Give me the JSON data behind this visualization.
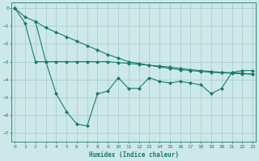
{
  "line1_x": [
    0,
    1,
    2,
    3,
    4,
    5,
    6,
    7,
    8,
    9,
    10,
    11,
    12,
    13,
    14,
    15,
    16,
    17,
    18,
    19,
    20,
    21,
    22,
    23
  ],
  "line1_y": [
    0.0,
    -0.5,
    -0.75,
    -1.1,
    -1.35,
    -1.6,
    -1.85,
    -2.1,
    -2.35,
    -2.6,
    -2.8,
    -3.0,
    -3.1,
    -3.2,
    -3.3,
    -3.38,
    -3.45,
    -3.5,
    -3.55,
    -3.6,
    -3.62,
    -3.65,
    -3.68,
    -3.7
  ],
  "line2_x": [
    2,
    3,
    4,
    5,
    6,
    7,
    8,
    9,
    10,
    11,
    12,
    13,
    14,
    15,
    16,
    17,
    18,
    19,
    20,
    21,
    22,
    23
  ],
  "line2_y": [
    -0.75,
    -3.0,
    -3.0,
    -3.0,
    -3.0,
    -3.0,
    -3.0,
    -3.0,
    -3.05,
    -3.1,
    -3.15,
    -3.2,
    -3.25,
    -3.3,
    -3.38,
    -3.45,
    -3.5,
    -3.55,
    -3.6,
    -3.62,
    -3.65,
    -3.7
  ],
  "line3_x": [
    0,
    1,
    2,
    3,
    4,
    5,
    6,
    7,
    8,
    9,
    10,
    11,
    12,
    13,
    14,
    15,
    16,
    17,
    18,
    19,
    20,
    21,
    22,
    23
  ],
  "line3_y": [
    0.0,
    -0.85,
    -3.0,
    -3.0,
    -4.8,
    -5.8,
    -6.5,
    -6.6,
    -4.8,
    -4.65,
    -3.9,
    -4.5,
    -4.5,
    -3.9,
    -4.1,
    -4.2,
    -4.1,
    -4.2,
    -4.3,
    -4.8,
    -4.5,
    -3.6,
    -3.5,
    -3.5
  ],
  "color": "#1a7a6e",
  "bg_color": "#cde8e8",
  "grid_color": "#aad0d0",
  "xlabel": "Humidex (Indice chaleur)",
  "ylim": [
    -7.5,
    0.3
  ],
  "xlim": [
    -0.3,
    23.3
  ],
  "yticks": [
    0,
    -1,
    -2,
    -3,
    -4,
    -5,
    -6,
    -7
  ],
  "xticks": [
    0,
    1,
    2,
    3,
    4,
    5,
    6,
    7,
    8,
    9,
    10,
    11,
    12,
    13,
    14,
    15,
    16,
    17,
    18,
    19,
    20,
    21,
    22,
    23
  ],
  "markersize": 2.0,
  "linewidth": 0.8
}
